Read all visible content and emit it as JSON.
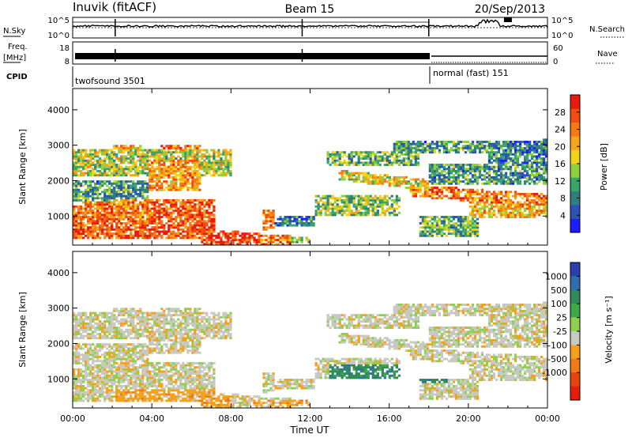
{
  "header": {
    "station": "Inuvik (fitACF)",
    "beam": "Beam 15",
    "date": "20/Sep/2013"
  },
  "strips": {
    "nsky_label": "N.Sky",
    "nsky_ticks": [
      "10^5",
      "10^0"
    ],
    "nsearch_label": "N.Search",
    "nsearch_ticks": [
      "10^5",
      "10^0"
    ],
    "freq_label_1": "Freq.",
    "freq_label_2": "[MHz]",
    "freq_ticks": [
      "18",
      "8"
    ],
    "nave_label": "Nave",
    "nave_ticks": [
      "60",
      "0"
    ],
    "cpid_label": "CPID",
    "cpid_mode_1": "twofsound 3501",
    "cpid_mode_2": "normal (fast) 151"
  },
  "colors": {
    "power": [
      "#1c1cff",
      "#2c52b8",
      "#2f7f7f",
      "#3aa56a",
      "#8fd03e",
      "#f5d21a",
      "#f8a51a",
      "#f57a14",
      "#f24c10",
      "#e81c0c"
    ],
    "velocity": [
      "#2a3fb0",
      "#2f6fb0",
      "#2f8a5a",
      "#3fa84a",
      "#90d050",
      "#c9c9c3",
      "#f5a11a",
      "#f07a14",
      "#e8420e",
      "#e51b0b"
    ]
  },
  "chart_data": [
    {
      "type": "heatmap",
      "name": "power",
      "ylabel": "Slant Range [km]",
      "yticks": [
        1000,
        2000,
        3000,
        4000
      ],
      "ylim": [
        180,
        4600
      ],
      "colorbar_label": "Power [dB]",
      "colorbar_ticks": [
        "4",
        "8",
        "12",
        "16",
        "20",
        "24",
        "28"
      ],
      "colorbar_range": [
        0,
        32
      ]
    },
    {
      "type": "heatmap",
      "name": "velocity",
      "ylabel": "Slant Range [km]",
      "yticks": [
        1000,
        2000,
        3000,
        4000
      ],
      "ylim": [
        180,
        4600
      ],
      "colorbar_label": "Velocity [m s⁻¹]",
      "colorbar_ticks": [
        "1000",
        "500",
        "100",
        "25",
        "-25",
        "-100",
        "-500",
        "-1000"
      ]
    }
  ],
  "xaxis": {
    "ticks": [
      "00:00",
      "04:00",
      "08:00",
      "12:00",
      "16:00",
      "20:00",
      "00:00"
    ],
    "label": "Time UT",
    "range_hours": [
      0,
      24
    ]
  }
}
